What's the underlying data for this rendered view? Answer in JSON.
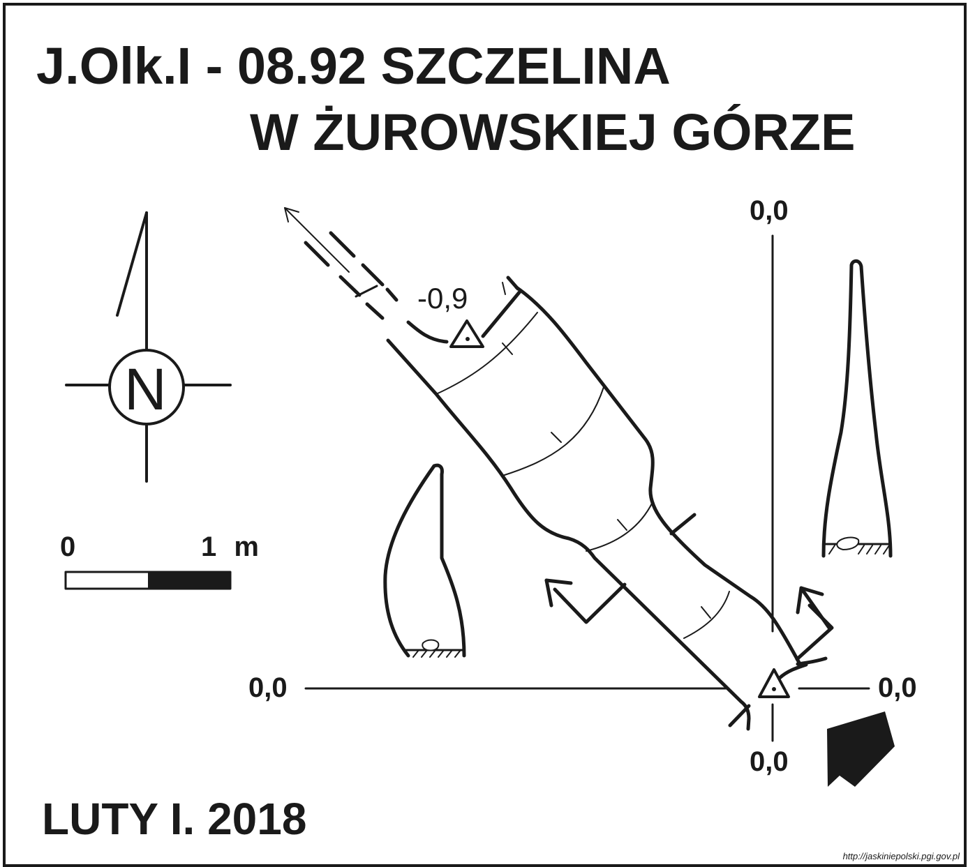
{
  "title": {
    "line1": "J.Olk.I - 08.92  SZCZELINA",
    "line2": "W ŻUROWSKIEJ GÓRZE"
  },
  "compass": {
    "letter": "N",
    "icon": "north-arrow-icon"
  },
  "scale_bar": {
    "start_label": "0",
    "end_label": "1 m"
  },
  "datum_labels": {
    "top": "0,0",
    "left": "0,0",
    "right": "0,0",
    "bottom": "0,0"
  },
  "depth_label": "-0,9",
  "date": "LUTY I. 2018",
  "source_url": "http://jaskiniepolski.pgi.gov.pl",
  "colors": {
    "ink": "#1a1a1a",
    "background": "#ffffff"
  }
}
